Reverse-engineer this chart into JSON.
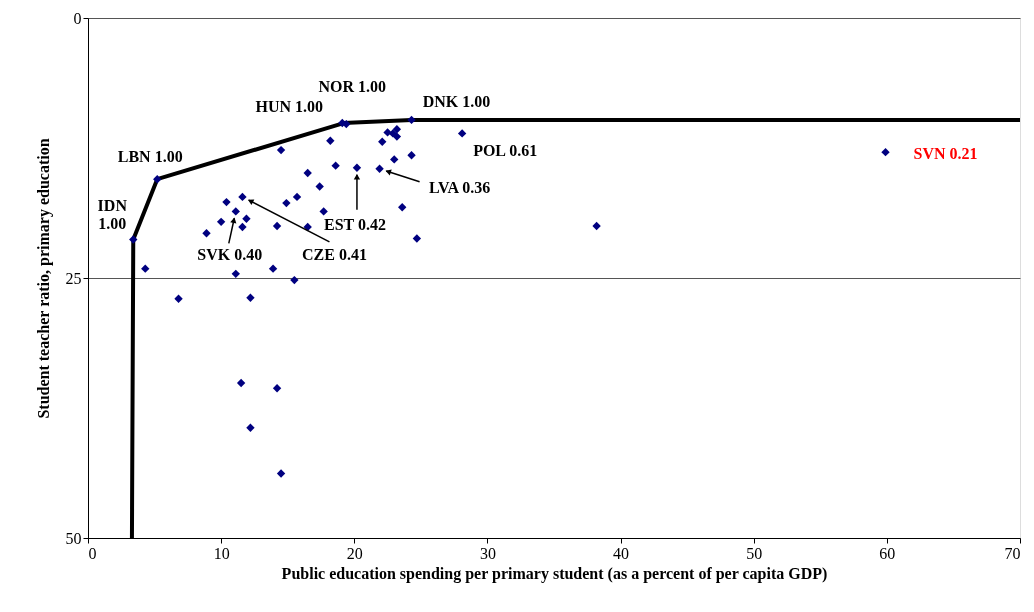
{
  "chart_data": {
    "type": "scatter",
    "xlabel": "Public education spending per primary student (as a percent of per capita GDP)",
    "ylabel": "Student teacher ratio, primary education",
    "xlim": [
      0,
      70
    ],
    "xticks": [
      0,
      10,
      20,
      30,
      40,
      50,
      60,
      70
    ],
    "ylim": [
      50,
      0
    ],
    "yticks": [
      0,
      25,
      50
    ],
    "grid": "y",
    "series": [
      {
        "type": "scatter",
        "color": "#000080",
        "marker": "diamond",
        "x": [
          3.4,
          5.2,
          19.1,
          19.4,
          24.3,
          14.5,
          18.2,
          22.5,
          23.2,
          22.9,
          23.2,
          22.1,
          24.3,
          23.0,
          21.9,
          20.2,
          18.6,
          16.5,
          17.4,
          15.7,
          14.9,
          17.7,
          23.6,
          24.7,
          16.5,
          14.2,
          11.6,
          10.4,
          11.1,
          11.9,
          11.6,
          10.0,
          8.9,
          4.3,
          11.1,
          13.9,
          15.5,
          6.8,
          12.2,
          28.1,
          38.2,
          11.5,
          14.2,
          12.2,
          14.5,
          59.9
        ],
        "values": [
          21.3,
          15.5,
          10.1,
          10.2,
          9.8,
          12.7,
          11.8,
          11.0,
          10.7,
          11.1,
          11.4,
          11.9,
          13.2,
          13.6,
          14.5,
          14.4,
          14.2,
          14.9,
          16.2,
          17.2,
          17.8,
          18.6,
          18.2,
          21.2,
          20.1,
          20.0,
          17.2,
          17.7,
          18.6,
          19.3,
          20.1,
          19.6,
          20.7,
          24.1,
          24.6,
          24.1,
          25.2,
          27.0,
          26.9,
          11.1,
          20.0,
          35.1,
          35.6,
          39.4,
          43.8,
          12.9
        ]
      },
      {
        "type": "line",
        "color": "#000000",
        "marker": "none",
        "line_style": "solid",
        "x": [
          3.3,
          3.4,
          5.2,
          19.2,
          24.3,
          70
        ],
        "values": [
          50,
          21.3,
          15.5,
          10.1,
          9.8,
          9.8
        ]
      }
    ],
    "annotations": [
      {
        "text": "IDN 1.00",
        "x": 3.4,
        "y": 21.3
      },
      {
        "text": "LBN 1.00",
        "x": 5.2,
        "y": 15.5
      },
      {
        "text": "HUN 1.00",
        "x": 19.1,
        "y": 10.1
      },
      {
        "text": "NOR 1.00",
        "x": 19.4,
        "y": 10.2
      },
      {
        "text": "DNK 1.00",
        "x": 24.3,
        "y": 9.8
      },
      {
        "text": "POL 0.61",
        "x": 28.1,
        "y": 11.1
      },
      {
        "text": "SVN 0.21",
        "x": 59.9,
        "y": 12.9
      },
      {
        "text": "LVA 0.36",
        "x": 21.9,
        "y": 14.5
      },
      {
        "text": "EST 0.42",
        "x": 20.2,
        "y": 14.4
      },
      {
        "text": "CZE 0.41",
        "x": 11.6,
        "y": 17.2
      },
      {
        "text": "SVK 0.40",
        "x": 11.1,
        "y": 18.6
      }
    ]
  }
}
